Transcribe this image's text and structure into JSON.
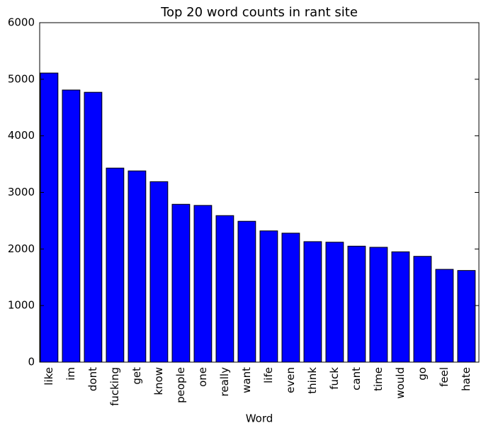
{
  "chart_data": {
    "type": "bar",
    "title": "Top 20 word counts in rant site",
    "x_label": "Word",
    "categories": [
      "like",
      "im",
      "dont",
      "fucking",
      "get",
      "know",
      "people",
      "one",
      "really",
      "want",
      "life",
      "even",
      "think",
      "fuck",
      "cant",
      "time",
      "would",
      "go",
      "feel",
      "hate"
    ],
    "values": [
      5110,
      4810,
      4770,
      3430,
      3380,
      3190,
      2790,
      2770,
      2590,
      2490,
      2320,
      2280,
      2130,
      2120,
      2050,
      2030,
      1950,
      1870,
      1640,
      1620
    ],
    "color": "#0000ff",
    "ylim": [
      0,
      6000
    ],
    "yticks": [
      0,
      1000,
      2000,
      3000,
      4000,
      5000,
      6000
    ],
    "grid": false
  }
}
